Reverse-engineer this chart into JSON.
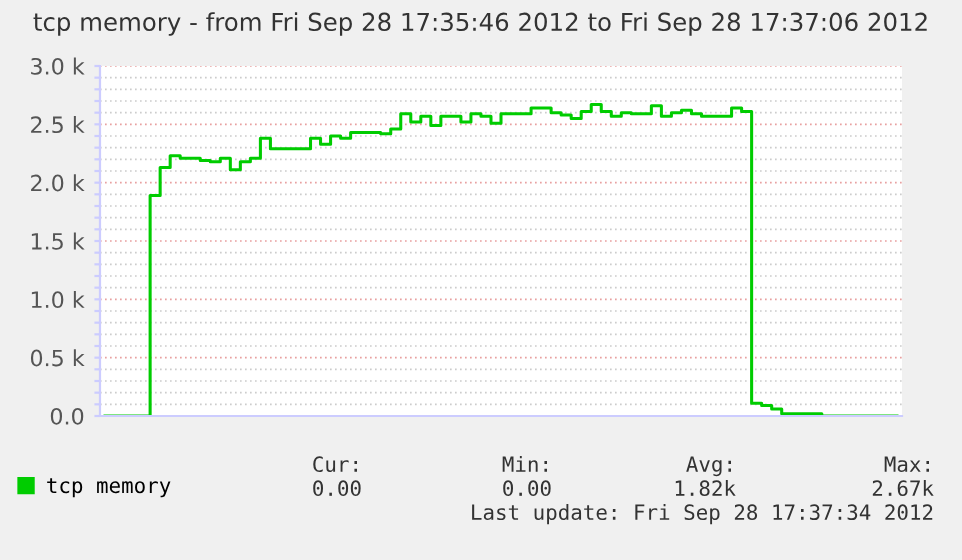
{
  "chart_data": {
    "type": "step",
    "title": "tcp memory - from Fri Sep 28 17:35:46 2012 to Fri Sep 28 17:37:06 2012",
    "categories": [
      null,
      null,
      null,
      null,
      null,
      null,
      null,
      null,
      null,
      null,
      null,
      null,
      null,
      null,
      null,
      null,
      null,
      null,
      null,
      null,
      null,
      null,
      null,
      null,
      null,
      null,
      null,
      null,
      null,
      null,
      null,
      null,
      null,
      null,
      null,
      null,
      null,
      null,
      null,
      null,
      null,
      null,
      null,
      null,
      null,
      null,
      null,
      null,
      null,
      null,
      null,
      null,
      null,
      null,
      null,
      null,
      null,
      null,
      null,
      null,
      null,
      null,
      null,
      null,
      null,
      null,
      null,
      null,
      null,
      null,
      null,
      null,
      null,
      null,
      null,
      null,
      null,
      null,
      null,
      null
    ],
    "series": [
      {
        "name": "tcp memory",
        "color": "#00cc00",
        "values": [
          0,
          0,
          0,
          0,
          0,
          1890,
          2130,
          2230,
          2210,
          2210,
          2190,
          2180,
          2210,
          2110,
          2180,
          2210,
          2380,
          2290,
          2290,
          2290,
          2290,
          2380,
          2330,
          2400,
          2380,
          2430,
          2430,
          2430,
          2420,
          2460,
          2590,
          2520,
          2570,
          2490,
          2570,
          2570,
          2520,
          2590,
          2570,
          2510,
          2590,
          2590,
          2590,
          2640,
          2640,
          2600,
          2580,
          2550,
          2610,
          2670,
          2610,
          2570,
          2600,
          2590,
          2590,
          2660,
          2570,
          2600,
          2620,
          2590,
          2570,
          2570,
          2570,
          2640,
          2610,
          110,
          90,
          60,
          20,
          20,
          20,
          20,
          0,
          0,
          0,
          0,
          0,
          0,
          0,
          0
        ]
      }
    ],
    "ylim": [
      0,
      3000
    ],
    "yticks": [
      {
        "value": 0,
        "label": "0.0"
      },
      {
        "value": 100,
        "label": null
      },
      {
        "value": 200,
        "label": null
      },
      {
        "value": 300,
        "label": null
      },
      {
        "value": 400,
        "label": null
      },
      {
        "value": 500,
        "label": "0.5 k"
      },
      {
        "value": 600,
        "label": null
      },
      {
        "value": 700,
        "label": null
      },
      {
        "value": 800,
        "label": null
      },
      {
        "value": 900,
        "label": null
      },
      {
        "value": 1000,
        "label": "1.0 k"
      },
      {
        "value": 1100,
        "label": null
      },
      {
        "value": 1200,
        "label": null
      },
      {
        "value": 1300,
        "label": null
      },
      {
        "value": 1400,
        "label": null
      },
      {
        "value": 1500,
        "label": "1.5 k"
      },
      {
        "value": 1600,
        "label": null
      },
      {
        "value": 1700,
        "label": null
      },
      {
        "value": 1800,
        "label": null
      },
      {
        "value": 1900,
        "label": null
      },
      {
        "value": 2000,
        "label": "2.0 k"
      },
      {
        "value": 2100,
        "label": null
      },
      {
        "value": 2200,
        "label": null
      },
      {
        "value": 2300,
        "label": null
      },
      {
        "value": 2400,
        "label": null
      },
      {
        "value": 2500,
        "label": "2.5 k"
      },
      {
        "value": 2600,
        "label": null
      },
      {
        "value": 2700,
        "label": null
      },
      {
        "value": 2800,
        "label": null
      },
      {
        "value": 2900,
        "label": null
      },
      {
        "value": 3000,
        "label": "3.0 k"
      }
    ],
    "grid": "y",
    "legend": "bottom",
    "line_style": "solid",
    "annotations": [
      "Cur:",
      "Min:",
      "Avg:",
      "Max:",
      "0.00",
      "0.00",
      "1.82k",
      "2.67k",
      "Last update: Fri Sep 28 17:37:34 2012"
    ]
  }
}
